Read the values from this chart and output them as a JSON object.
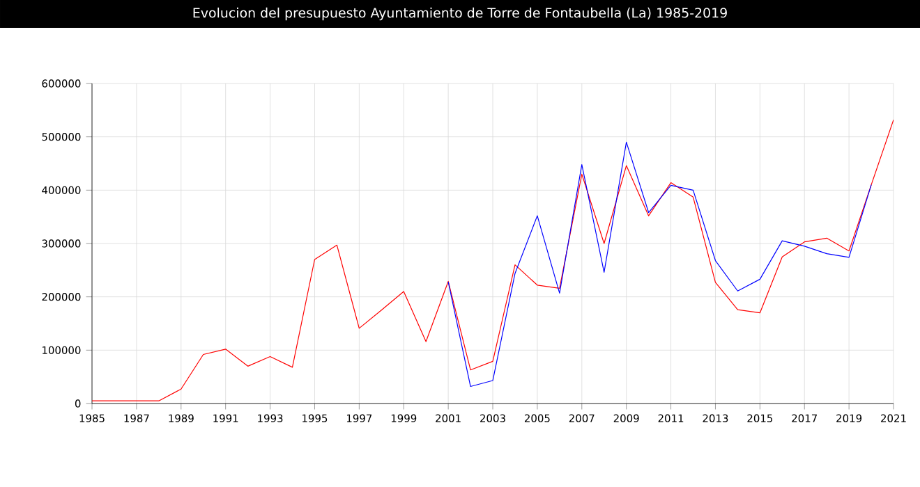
{
  "chart_data": {
    "type": "line",
    "title": "Evolucion del presupuesto Ayuntamiento de Torre de Fontaubella (La) 1985-2019",
    "x": [
      1985,
      1986,
      1987,
      1988,
      1989,
      1990,
      1991,
      1992,
      1993,
      1994,
      1995,
      1996,
      1997,
      1998,
      1999,
      2000,
      2001,
      2002,
      2003,
      2004,
      2005,
      2006,
      2007,
      2008,
      2009,
      2010,
      2011,
      2012,
      2013,
      2014,
      2015,
      2016,
      2017,
      2018,
      2019,
      2020,
      2021
    ],
    "series": [
      {
        "color": "#ff0000",
        "values": [
          5000,
          5000,
          5000,
          5000,
          27000,
          92000,
          102000,
          70000,
          88000,
          68000,
          270000,
          297000,
          141000,
          175000,
          210000,
          116000,
          229000,
          63000,
          79000,
          260000,
          222000,
          216000,
          430000,
          300000,
          446000,
          352000,
          414000,
          387000,
          227000,
          176000,
          170000,
          275000,
          303000,
          310000,
          286000,
          410000,
          532000
        ]
      },
      {
        "color": "#0000ff",
        "values": [
          null,
          null,
          null,
          null,
          null,
          null,
          null,
          null,
          null,
          null,
          null,
          null,
          null,
          null,
          null,
          null,
          228000,
          32000,
          43000,
          244000,
          352000,
          207000,
          448000,
          246000,
          490000,
          358000,
          409000,
          400000,
          268000,
          211000,
          233000,
          305000,
          295000,
          281000,
          274000,
          410000,
          null
        ]
      }
    ],
    "xlim": [
      1985,
      2021
    ],
    "ylim": [
      0,
      600000
    ],
    "xticks": [
      1985,
      1987,
      1989,
      1991,
      1993,
      1995,
      1997,
      1999,
      2001,
      2003,
      2005,
      2007,
      2009,
      2011,
      2013,
      2015,
      2017,
      2019,
      2021
    ],
    "yticks": [
      0,
      100000,
      200000,
      300000,
      400000,
      500000,
      600000
    ],
    "grid": true
  }
}
